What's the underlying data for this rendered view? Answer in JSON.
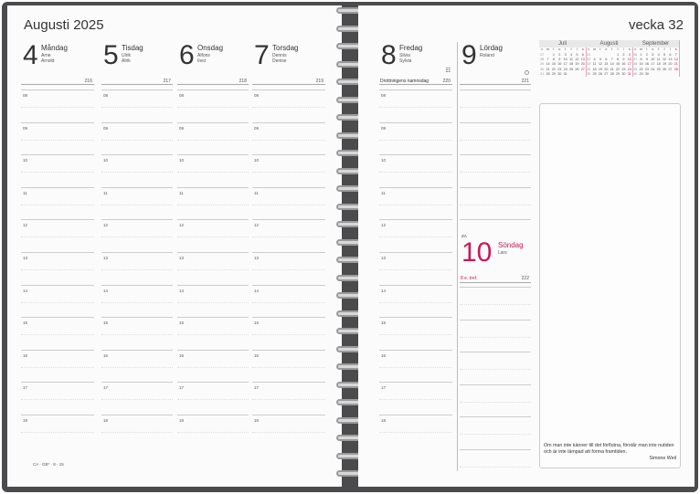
{
  "left_page": {
    "month_title": "Augusti 2025",
    "footer_code": "CA · GB* · 8 · 15",
    "days": [
      {
        "num": "4",
        "name": "Måndag",
        "names": [
          "Arne",
          "Arnold"
        ],
        "day_of_year": "216"
      },
      {
        "num": "5",
        "name": "Tisdag",
        "names": [
          "Ulrik",
          "Alrik"
        ],
        "day_of_year": "217"
      },
      {
        "num": "6",
        "name": "Onsdag",
        "names": [
          "Alfons",
          "Inez"
        ],
        "day_of_year": "218"
      },
      {
        "num": "7",
        "name": "Torsdag",
        "names": [
          "Dennis",
          "Denise"
        ],
        "day_of_year": "219"
      }
    ]
  },
  "hours": [
    "08",
    "09",
    "10",
    "11",
    "12",
    "13",
    "14",
    "15",
    "16",
    "17",
    "18"
  ],
  "right_page": {
    "week_title": "vecka 32",
    "days": [
      {
        "num": "8",
        "name": "Fredag",
        "names": [
          "Silvia",
          "Sylvia"
        ],
        "day_of_year": "220",
        "note": "Drottningens namnsdag",
        "icon": "flag-icon"
      },
      {
        "num": "9",
        "name": "Lördag",
        "names": [
          "Roland"
        ],
        "day_of_year": "221",
        "icon": "moon-phase-icon"
      },
      {
        "num": "10",
        "name": "Söndag",
        "names": [
          "Lars"
        ],
        "day_of_year": "222",
        "note": "8 e. tref.",
        "week_label": "ZA"
      }
    ],
    "quote": "Om man inte känner till det förflutna, förstår man inte nutiden och är inte lämpad att forma framtiden.",
    "quote_author": "Simone Weil"
  },
  "mini_calendars": {
    "weekday_header": [
      "v",
      "m",
      "t",
      "o",
      "t",
      "f",
      "l",
      "s"
    ],
    "months": [
      {
        "name": "Juli",
        "weeks": [
          [
            "27",
            "",
            "1",
            "2",
            "3",
            "4",
            "5",
            "6"
          ],
          [
            "28",
            "7",
            "8",
            "9",
            "10",
            "11",
            "12",
            "13"
          ],
          [
            "29",
            "14",
            "15",
            "16",
            "17",
            "18",
            "19",
            "20"
          ],
          [
            "30",
            "21",
            "22",
            "23",
            "24",
            "25",
            "26",
            "27"
          ],
          [
            "31",
            "28",
            "29",
            "30",
            "31",
            "",
            "",
            ""
          ]
        ]
      },
      {
        "name": "Augusti",
        "weeks": [
          [
            "31",
            "",
            "",
            "",
            "",
            "1",
            "2",
            "3"
          ],
          [
            "32",
            "4",
            "5",
            "6",
            "7",
            "8",
            "9",
            "10"
          ],
          [
            "33",
            "11",
            "12",
            "13",
            "14",
            "15",
            "16",
            "17"
          ],
          [
            "34",
            "18",
            "19",
            "20",
            "21",
            "22",
            "23",
            "24"
          ],
          [
            "35",
            "25",
            "26",
            "27",
            "28",
            "29",
            "30",
            "31"
          ]
        ]
      },
      {
        "name": "September",
        "weeks": [
          [
            "36",
            "1",
            "2",
            "3",
            "4",
            "5",
            "6",
            "7"
          ],
          [
            "37",
            "8",
            "9",
            "10",
            "11",
            "12",
            "13",
            "14"
          ],
          [
            "38",
            "15",
            "16",
            "17",
            "18",
            "19",
            "20",
            "21"
          ],
          [
            "39",
            "22",
            "23",
            "24",
            "25",
            "26",
            "27",
            "28"
          ],
          [
            "40",
            "29",
            "30",
            "",
            "",
            "",
            "",
            ""
          ]
        ]
      }
    ]
  },
  "colors": {
    "sunday": "#c8185a",
    "cover": "#4b4b4d"
  }
}
